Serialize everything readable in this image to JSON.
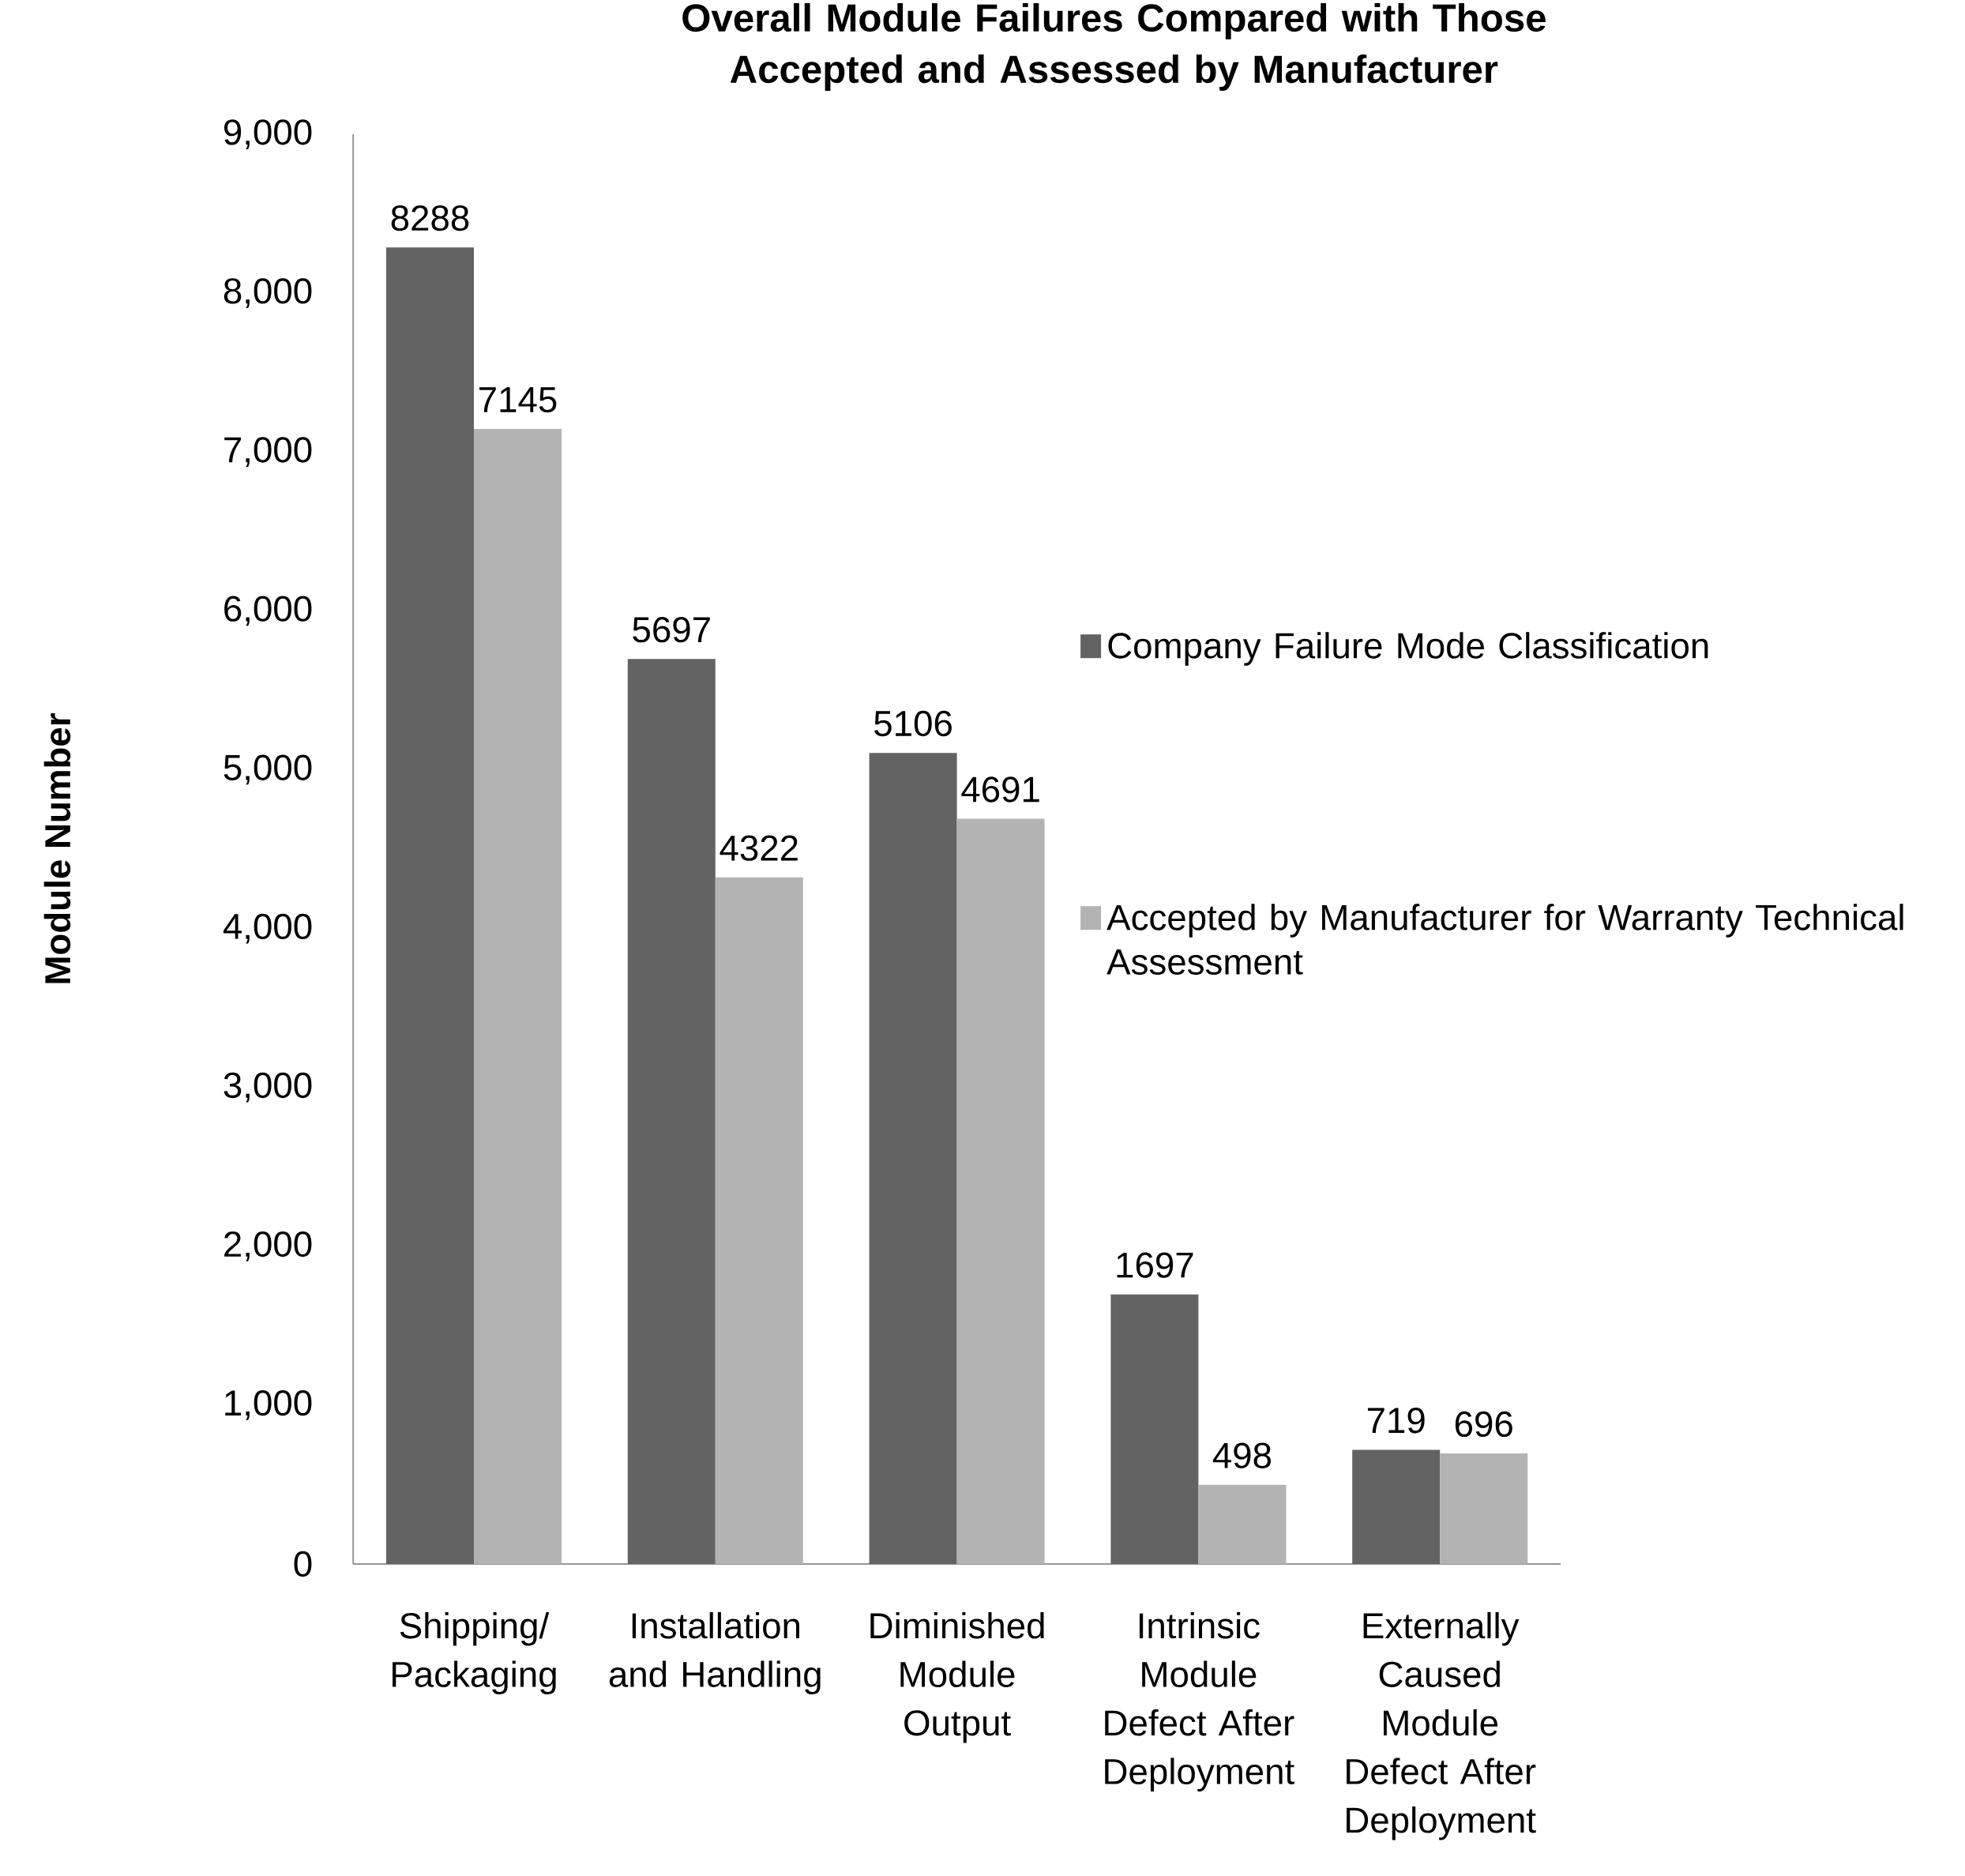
{
  "chart_data": {
    "type": "bar",
    "title": "Overall Module Failures  Compared with Those Accepted and Assessed by Manufacturer",
    "ylabel": "Module Number",
    "categories": [
      "Shipping/ Packaging",
      "Installation and Handling",
      "Diminished Module Output",
      "Intrinsic Module Defect After Deployment",
      "Externally Caused Module Defect After Deployment"
    ],
    "series": [
      {
        "name": "Company Failure Mode Classification",
        "color": "#636363",
        "values": [
          8288,
          5697,
          5106,
          1697,
          719
        ]
      },
      {
        "name": "Accepted by Manufacturer for Warranty Technical Assessment",
        "color": "#b3b3b3",
        "values": [
          7145,
          4322,
          4691,
          498,
          696
        ]
      }
    ],
    "ylim": [
      0,
      9000
    ],
    "yticks": [
      0,
      {
        "value": 1000,
        "label": "1,000"
      },
      {
        "value": 2000,
        "label": "2,000"
      },
      {
        "value": 3000,
        "label": "3,000"
      },
      {
        "value": 4000,
        "label": "4,000"
      },
      {
        "value": 5000,
        "label": "5,000"
      },
      {
        "value": 6000,
        "label": "6,000"
      },
      {
        "value": 7000,
        "label": "7,000"
      },
      {
        "value": 8000,
        "label": "8,000"
      },
      {
        "value": 9000,
        "label": "9,000"
      }
    ],
    "data_labels": true,
    "legend": "right",
    "grid": false
  }
}
